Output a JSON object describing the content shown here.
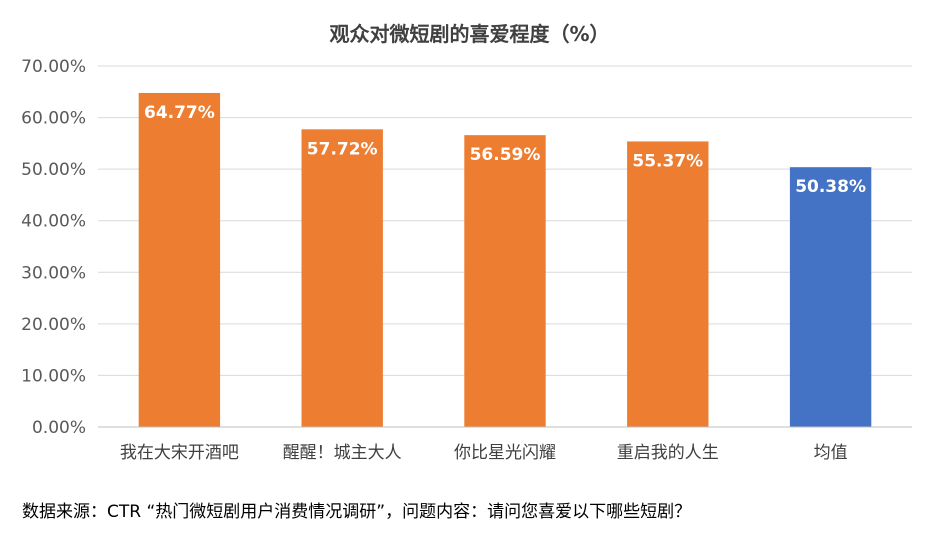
{
  "chart_data": {
    "type": "bar",
    "title": "观众对微短剧的喜爱程度（%）",
    "categories": [
      "我在大宋开酒吧",
      "醒醒！城主大人",
      "你比星光闪耀",
      "重启我的人生",
      "均值"
    ],
    "values": [
      64.77,
      57.72,
      56.59,
      55.37,
      50.38
    ],
    "data_labels": [
      "64.77%",
      "57.72%",
      "56.59%",
      "55.37%",
      "50.38%"
    ],
    "ylim": [
      0,
      70
    ],
    "yticks": [
      0,
      10,
      20,
      30,
      40,
      50,
      60,
      70
    ],
    "ytick_labels": [
      "0.00%",
      "10.00%",
      "20.00%",
      "30.00%",
      "40.00%",
      "50.00%",
      "60.00%",
      "70.00%"
    ],
    "xlabel": "",
    "ylabel": "",
    "grid": true,
    "legend": "none",
    "colors": {
      "bar_default": "#ED7D31",
      "bar_highlight": "#4472C4",
      "grid": "#D9D9D9",
      "axis": "#BFBFBF"
    },
    "highlight_index": 4
  },
  "source_note": "数据来源：CTR “热门微短剧用户消费情况调研”，问题内容：请问您喜爱以下哪些短剧？"
}
